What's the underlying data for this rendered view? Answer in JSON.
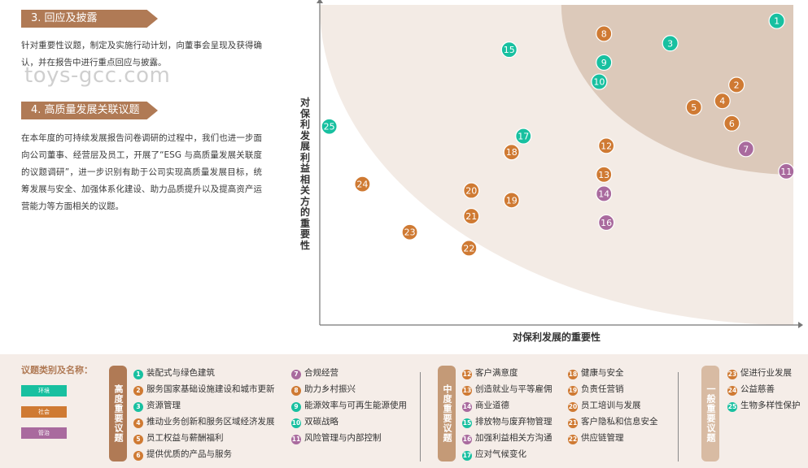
{
  "left_panel": {
    "section3_title": "3. 回应及披露",
    "section3_text": "针对重要性议题，制定及实施行动计划，向董事会呈现及获得确认，并在报告中进行重点回应与披露。",
    "section4_title": "4. 高质量发展关联议题",
    "section4_text": "在本年度的可持续发展报告问卷调研的过程中，我们也进一步面向公司董事、经营层及员工，开展了“ESG 与高质量发展关联度的议题调研”，进一步识别有助于公司实现高质量发展目标，统筹发展与安全、加强体系化建设、助力品质提升以及提高资产运营能力等方面相关的议题。",
    "watermark": "toys-gcc.com"
  },
  "colors": {
    "environment": "#18c0a0",
    "society": "#cf7a33",
    "governance": "#a96a9e",
    "high_zone": "#dcc9ba",
    "mid_zone": "#f3ebe5",
    "banner": "#b07a55"
  },
  "chart_data": {
    "type": "scatter",
    "xlabel": "对保利发展的重要性",
    "ylabel": "对保利发展利益相关方的重要性",
    "xlim": [
      0,
      100
    ],
    "ylim": [
      0,
      100
    ],
    "points": [
      {
        "id": "1",
        "x": 96.5,
        "y": 95,
        "cat": "environment"
      },
      {
        "id": "2",
        "x": 88,
        "y": 75,
        "cat": "society"
      },
      {
        "id": "3",
        "x": 74,
        "y": 88,
        "cat": "environment"
      },
      {
        "id": "4",
        "x": 85,
        "y": 70,
        "cat": "society"
      },
      {
        "id": "5",
        "x": 79,
        "y": 68,
        "cat": "society"
      },
      {
        "id": "6",
        "x": 87,
        "y": 63,
        "cat": "society"
      },
      {
        "id": "7",
        "x": 90,
        "y": 55,
        "cat": "governance"
      },
      {
        "id": "8",
        "x": 60,
        "y": 91,
        "cat": "society"
      },
      {
        "id": "9",
        "x": 60,
        "y": 82,
        "cat": "environment"
      },
      {
        "id": "10",
        "x": 59,
        "y": 76,
        "cat": "environment"
      },
      {
        "id": "11",
        "x": 98.5,
        "y": 48,
        "cat": "governance"
      },
      {
        "id": "12",
        "x": 60.5,
        "y": 56,
        "cat": "society"
      },
      {
        "id": "13",
        "x": 60,
        "y": 47,
        "cat": "society"
      },
      {
        "id": "14",
        "x": 60,
        "y": 41,
        "cat": "governance"
      },
      {
        "id": "15",
        "x": 40,
        "y": 86,
        "cat": "environment"
      },
      {
        "id": "16",
        "x": 60.5,
        "y": 32,
        "cat": "governance"
      },
      {
        "id": "17",
        "x": 43,
        "y": 59,
        "cat": "environment"
      },
      {
        "id": "18",
        "x": 40.5,
        "y": 54,
        "cat": "society"
      },
      {
        "id": "19",
        "x": 40.5,
        "y": 39,
        "cat": "society"
      },
      {
        "id": "20",
        "x": 32,
        "y": 42,
        "cat": "society"
      },
      {
        "id": "21",
        "x": 32,
        "y": 34,
        "cat": "society"
      },
      {
        "id": "22",
        "x": 31.5,
        "y": 24,
        "cat": "society"
      },
      {
        "id": "23",
        "x": 19,
        "y": 29,
        "cat": "society"
      },
      {
        "id": "24",
        "x": 9,
        "y": 44,
        "cat": "society"
      },
      {
        "id": "25",
        "x": 2,
        "y": 62,
        "cat": "environment"
      }
    ]
  },
  "legend": {
    "title": "议题类别及名称：",
    "categories": [
      {
        "key": "environment",
        "label": "环境"
      },
      {
        "key": "society",
        "label": "社会"
      },
      {
        "key": "governance",
        "label": "管治"
      }
    ],
    "groups": [
      {
        "label": "高度重要议题",
        "color": "#b07a55"
      },
      {
        "label": "中度重要议题",
        "color": "#c49a77"
      },
      {
        "label": "一般重要议题",
        "color": "#d8bba3"
      }
    ],
    "items": [
      {
        "id": "1",
        "name": "装配式与绿色建筑",
        "cat": "environment"
      },
      {
        "id": "2",
        "name": "服务国家基础设施建设和城市更新",
        "cat": "society"
      },
      {
        "id": "3",
        "name": "资源管理",
        "cat": "environment"
      },
      {
        "id": "4",
        "name": "推动业务创新和服务区域经济发展",
        "cat": "society"
      },
      {
        "id": "5",
        "name": "员工权益与薪酬福利",
        "cat": "society"
      },
      {
        "id": "6",
        "name": "提供优质的产品与服务",
        "cat": "society"
      },
      {
        "id": "7",
        "name": "合规经营",
        "cat": "governance"
      },
      {
        "id": "8",
        "name": "助力乡村振兴",
        "cat": "society"
      },
      {
        "id": "9",
        "name": "能源效率与可再生能源使用",
        "cat": "environment"
      },
      {
        "id": "10",
        "name": "双碳战略",
        "cat": "environment"
      },
      {
        "id": "11",
        "name": "风险管理与内部控制",
        "cat": "governance"
      },
      {
        "id": "12",
        "name": "客户满意度",
        "cat": "society"
      },
      {
        "id": "13",
        "name": "创造就业与平等雇佣",
        "cat": "society"
      },
      {
        "id": "14",
        "name": "商业道德",
        "cat": "governance"
      },
      {
        "id": "15",
        "name": "排放物与废弃物管理",
        "cat": "environment"
      },
      {
        "id": "16",
        "name": "加强利益相关方沟通",
        "cat": "governance"
      },
      {
        "id": "17",
        "name": "应对气候变化",
        "cat": "environment"
      },
      {
        "id": "18",
        "name": "健康与安全",
        "cat": "society"
      },
      {
        "id": "19",
        "name": "负责任营销",
        "cat": "society"
      },
      {
        "id": "20",
        "name": "员工培训与发展",
        "cat": "society"
      },
      {
        "id": "21",
        "name": "客户隐私和信息安全",
        "cat": "society"
      },
      {
        "id": "22",
        "name": "供应链管理",
        "cat": "society"
      },
      {
        "id": "23",
        "name": "促进行业发展",
        "cat": "society"
      },
      {
        "id": "24",
        "name": "公益慈善",
        "cat": "society"
      },
      {
        "id": "25",
        "name": "生物多样性保护",
        "cat": "environment"
      }
    ]
  }
}
